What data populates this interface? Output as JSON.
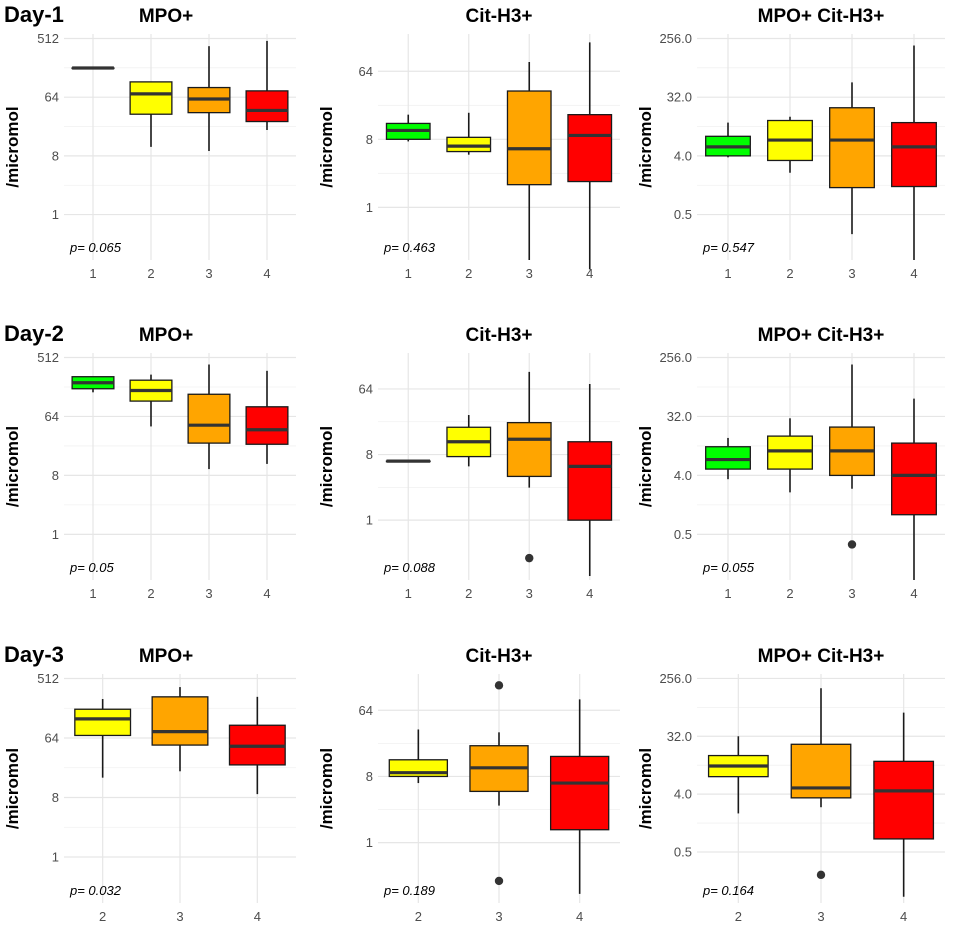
{
  "colors": {
    "1": "#00ff00",
    "2": "#ffff00",
    "3": "#ffa500",
    "4": "#ff0000"
  },
  "chart_data": [
    {
      "type": "boxplot",
      "day": "Day-1",
      "title": "MPO+",
      "ylabel": "/micromol",
      "yscale": "log2",
      "yticks": [
        1,
        8,
        64,
        512
      ],
      "ytick_labels": [
        "1",
        "8",
        "64",
        "512"
      ],
      "ylim": [
        0.2,
        600
      ],
      "categories": [
        "1",
        "2",
        "3",
        "4"
      ],
      "p_label": "p= 0.065",
      "boxes": [
        {
          "cat": "1",
          "min": 180,
          "q1": 180,
          "median": 180,
          "q3": 180,
          "max": 180,
          "outliers": []
        },
        {
          "cat": "2",
          "min": 11,
          "q1": 35,
          "median": 72,
          "q3": 110,
          "max": 110,
          "outliers": []
        },
        {
          "cat": "3",
          "min": 9.5,
          "q1": 37,
          "median": 60,
          "q3": 90,
          "max": 390,
          "outliers": []
        },
        {
          "cat": "4",
          "min": 20,
          "q1": 27,
          "median": 40,
          "q3": 80,
          "max": 470,
          "outliers": []
        }
      ]
    },
    {
      "type": "boxplot",
      "day": "",
      "title": "Cit-H3+",
      "ylabel": "/micromol",
      "yscale": "log2",
      "yticks": [
        1,
        8,
        64
      ],
      "ytick_labels": [
        "1",
        "8",
        "64"
      ],
      "ylim": [
        0.2,
        200
      ],
      "categories": [
        "1",
        "2",
        "3",
        "4"
      ],
      "p_label": "p= 0.463",
      "boxes": [
        {
          "cat": "1",
          "min": 7.5,
          "q1": 8,
          "median": 10.5,
          "q3": 13,
          "max": 17,
          "outliers": []
        },
        {
          "cat": "2",
          "min": 5,
          "q1": 5.5,
          "median": 6.5,
          "q3": 8.5,
          "max": 18,
          "outliers": []
        },
        {
          "cat": "3",
          "min": 0.2,
          "q1": 2,
          "median": 6,
          "q3": 35,
          "max": 85,
          "outliers": []
        },
        {
          "cat": "4",
          "min": 0.15,
          "q1": 2.2,
          "median": 9,
          "q3": 17,
          "max": 155,
          "outliers": []
        }
      ]
    },
    {
      "type": "boxplot",
      "day": "",
      "title": "MPO+ Cit-H3+",
      "ylabel": "/micromol",
      "yscale": "log2",
      "yticks": [
        0.5,
        4,
        32,
        256
      ],
      "ytick_labels": [
        "0.5",
        "4.0",
        "32.0",
        "256.0"
      ],
      "ylim": [
        0.1,
        300
      ],
      "categories": [
        "1",
        "2",
        "3",
        "4"
      ],
      "p_label": "p= 0.547",
      "boxes": [
        {
          "cat": "1",
          "min": 3.8,
          "q1": 4,
          "median": 5.5,
          "q3": 8,
          "max": 13,
          "outliers": []
        },
        {
          "cat": "2",
          "min": 2.2,
          "q1": 3.4,
          "median": 7,
          "q3": 14,
          "max": 16,
          "outliers": []
        },
        {
          "cat": "3",
          "min": 0.25,
          "q1": 1.3,
          "median": 7,
          "q3": 22,
          "max": 54,
          "outliers": []
        },
        {
          "cat": "4",
          "min": 0.1,
          "q1": 1.35,
          "median": 5.5,
          "q3": 13,
          "max": 200,
          "outliers": []
        }
      ]
    },
    {
      "type": "boxplot",
      "day": "Day-2",
      "title": "MPO+",
      "ylabel": "/micromol",
      "yscale": "log2",
      "yticks": [
        1,
        8,
        64,
        512
      ],
      "ytick_labels": [
        "1",
        "8",
        "64",
        "512"
      ],
      "ylim": [
        0.2,
        600
      ],
      "categories": [
        "1",
        "2",
        "3",
        "4"
      ],
      "p_label": "p= 0.05",
      "boxes": [
        {
          "cat": "1",
          "min": 150,
          "q1": 170,
          "median": 210,
          "q3": 260,
          "max": 260,
          "outliers": []
        },
        {
          "cat": "2",
          "min": 45,
          "q1": 110,
          "median": 160,
          "q3": 230,
          "max": 280,
          "outliers": []
        },
        {
          "cat": "3",
          "min": 10,
          "q1": 25,
          "median": 47,
          "q3": 140,
          "max": 400,
          "outliers": []
        },
        {
          "cat": "4",
          "min": 12,
          "q1": 24,
          "median": 40,
          "q3": 90,
          "max": 320,
          "outliers": []
        }
      ]
    },
    {
      "type": "boxplot",
      "day": "",
      "title": "Cit-H3+",
      "ylabel": "/micromol",
      "yscale": "log2",
      "yticks": [
        1,
        8,
        64
      ],
      "ytick_labels": [
        "1",
        "8",
        "64"
      ],
      "ylim": [
        0.15,
        200
      ],
      "categories": [
        "1",
        "2",
        "3",
        "4"
      ],
      "p_label": "p= 0.088",
      "boxes": [
        {
          "cat": "1",
          "min": 6.5,
          "q1": 6.5,
          "median": 6.5,
          "q3": 6.5,
          "max": 6.5,
          "outliers": []
        },
        {
          "cat": "2",
          "min": 5.5,
          "q1": 7.5,
          "median": 12,
          "q3": 19,
          "max": 28,
          "outliers": []
        },
        {
          "cat": "3",
          "min": 2.8,
          "q1": 4,
          "median": 13,
          "q3": 22,
          "max": 110,
          "outliers": [
            0.3
          ]
        },
        {
          "cat": "4",
          "min": 0.17,
          "q1": 1,
          "median": 5.5,
          "q3": 12,
          "max": 75,
          "outliers": []
        }
      ]
    },
    {
      "type": "boxplot",
      "day": "",
      "title": "MPO+ Cit-H3+",
      "ylabel": "/micromol",
      "yscale": "log2",
      "yticks": [
        0.5,
        4,
        32,
        256
      ],
      "ytick_labels": [
        "0.5",
        "4.0",
        "32.0",
        "256.0"
      ],
      "ylim": [
        0.1,
        300
      ],
      "categories": [
        "1",
        "2",
        "3",
        "4"
      ],
      "p_label": "p= 0.055",
      "boxes": [
        {
          "cat": "1",
          "min": 3.5,
          "q1": 5,
          "median": 7,
          "q3": 11,
          "max": 15,
          "outliers": []
        },
        {
          "cat": "2",
          "min": 2.2,
          "q1": 5,
          "median": 9.5,
          "q3": 16,
          "max": 30,
          "outliers": []
        },
        {
          "cat": "3",
          "min": 2.5,
          "q1": 4,
          "median": 9.5,
          "q3": 22,
          "max": 200,
          "outliers": [
            0.35
          ]
        },
        {
          "cat": "4",
          "min": 0.1,
          "q1": 1,
          "median": 4,
          "q3": 12.5,
          "max": 60,
          "outliers": []
        }
      ]
    },
    {
      "type": "boxplot",
      "day": "Day-3",
      "title": "MPO+",
      "ylabel": "/micromol",
      "yscale": "log2",
      "yticks": [
        1,
        8,
        64,
        512
      ],
      "ytick_labels": [
        "1",
        "8",
        "64",
        "512"
      ],
      "ylim": [
        0.2,
        600
      ],
      "categories": [
        "2",
        "3",
        "4"
      ],
      "p_label": "p= 0.032",
      "boxes": [
        {
          "cat": "2",
          "min": 16,
          "q1": 70,
          "median": 125,
          "q3": 175,
          "max": 250,
          "outliers": []
        },
        {
          "cat": "3",
          "min": 20,
          "q1": 50,
          "median": 80,
          "q3": 270,
          "max": 380,
          "outliers": []
        },
        {
          "cat": "4",
          "min": 9,
          "q1": 25,
          "median": 48,
          "q3": 100,
          "max": 270,
          "outliers": []
        }
      ]
    },
    {
      "type": "boxplot",
      "day": "",
      "title": "Cit-H3+",
      "ylabel": "/micromol",
      "yscale": "log2",
      "yticks": [
        1,
        8,
        64
      ],
      "ytick_labels": [
        "1",
        "8",
        "64"
      ],
      "ylim": [
        0.15,
        200
      ],
      "categories": [
        "2",
        "3",
        "4"
      ],
      "p_label": "p= 0.189",
      "boxes": [
        {
          "cat": "2",
          "min": 6.5,
          "q1": 8,
          "median": 9,
          "q3": 13.5,
          "max": 35,
          "outliers": []
        },
        {
          "cat": "3",
          "min": 3.2,
          "q1": 5,
          "median": 10.5,
          "q3": 21,
          "max": 32,
          "outliers": [
            0.3,
            140
          ]
        },
        {
          "cat": "4",
          "min": 0.2,
          "q1": 1.5,
          "median": 6.5,
          "q3": 15,
          "max": 90,
          "outliers": []
        }
      ]
    },
    {
      "type": "boxplot",
      "day": "",
      "title": "MPO+ Cit-H3+",
      "ylabel": "/micromol",
      "yscale": "log2",
      "yticks": [
        0.5,
        4,
        32,
        256
      ],
      "ytick_labels": [
        "0.5",
        "4.0",
        "32.0",
        "256.0"
      ],
      "ylim": [
        0.08,
        300
      ],
      "categories": [
        "2",
        "3",
        "4"
      ],
      "p_label": "p= 0.164",
      "boxes": [
        {
          "cat": "2",
          "min": 2,
          "q1": 7.5,
          "median": 11,
          "q3": 16,
          "max": 32,
          "outliers": []
        },
        {
          "cat": "3",
          "min": 2.5,
          "q1": 3.5,
          "median": 5,
          "q3": 24,
          "max": 180,
          "outliers": [
            0.22
          ]
        },
        {
          "cat": "4",
          "min": 0.1,
          "q1": 0.8,
          "median": 4.5,
          "q3": 13,
          "max": 75,
          "outliers": []
        }
      ]
    }
  ]
}
